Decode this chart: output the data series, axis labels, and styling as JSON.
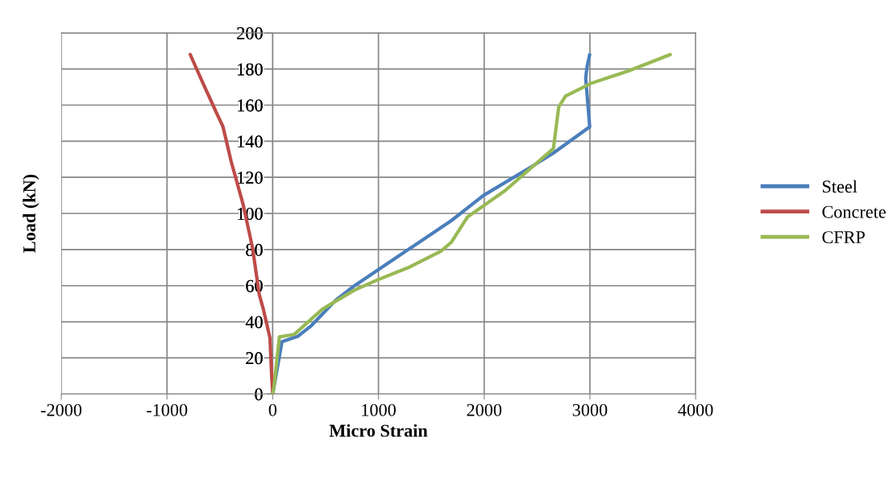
{
  "chart_data": {
    "type": "line",
    "xlabel": "Micro Strain",
    "ylabel": "Load (kN)",
    "xlim": [
      -2000,
      4000
    ],
    "xticks": [
      -2000,
      -1000,
      0,
      1000,
      2000,
      3000,
      4000
    ],
    "ylim": [
      0,
      200
    ],
    "yticks": [
      0,
      20,
      40,
      60,
      80,
      100,
      120,
      140,
      160,
      180,
      200
    ],
    "grid": true,
    "legend": "right",
    "marker": "none",
    "line_style": "solid",
    "series": [
      {
        "name": "Steel",
        "color": "#4a7ebb",
        "x": [
          0,
          88,
          240,
          368,
          597,
          774,
          1003,
          1689,
          1994,
          2451,
          2655,
          2998,
          2960,
          2972,
          2998
        ],
        "values": [
          0,
          29,
          32,
          38,
          52,
          60,
          69,
          96,
          110,
          126,
          133.5,
          148,
          175,
          181,
          188
        ]
      },
      {
        "name": "Concrete",
        "color": "#be4b48",
        "x": [
          0,
          -10,
          -26,
          -89,
          -127,
          -191,
          -280,
          -394,
          -470,
          -534,
          -674,
          -780
        ],
        "values": [
          0,
          10,
          31,
          47,
          55,
          81,
          105,
          129,
          148,
          156,
          174,
          188
        ]
      },
      {
        "name": "CFRP",
        "color": "#98b954",
        "x": [
          0,
          12,
          63,
          203,
          470,
          774,
          1003,
          1283,
          1588,
          1689,
          1841,
          2197,
          2655,
          2705,
          2769,
          3008,
          3366,
          3760
        ],
        "values": [
          0,
          4,
          31.6,
          33,
          47,
          57.6,
          63.5,
          70,
          79,
          84,
          98,
          112.6,
          136,
          159,
          165,
          172,
          179,
          188
        ]
      }
    ]
  }
}
